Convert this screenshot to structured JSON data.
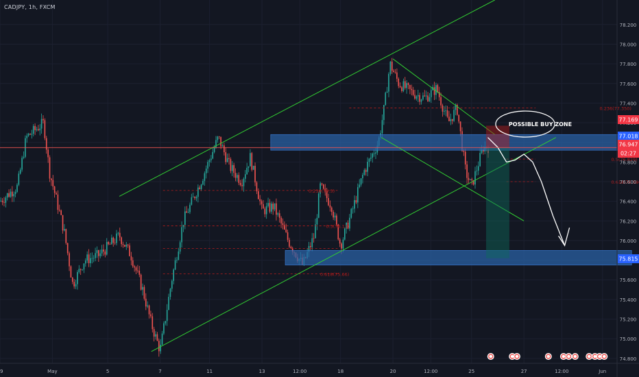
{
  "header": {
    "symbol": "CADJPY, 1h, FXCM"
  },
  "colors": {
    "bg": "#131722",
    "up": "#26a69a",
    "down": "#ef5350",
    "channel": "#32cd32",
    "zone": "#2962a8",
    "axis_text": "#b2b5be",
    "price_line": "#ef5350",
    "fib": "#b71c1c",
    "tag_red": "#f23645",
    "tag_blue": "#2962ff"
  },
  "annotation": {
    "buy_zone_label": "POSSIBLE BUY ZONE"
  },
  "price_tags": {
    "current_price": "76.947",
    "countdown": "02:27",
    "level_high": "77.169",
    "level_mid": "77.018",
    "level_low": "75.815"
  },
  "fib_labels": [
    {
      "text": "0.236(77.350)",
      "x": 10.3,
      "y": 77.35
    },
    {
      "text": "0.5(76.829)",
      "x": 10.5,
      "y": 76.83
    },
    {
      "text": "0.618(76.596)",
      "x": 10.5,
      "y": 76.6
    },
    {
      "text": "0.236(76.5)",
      "x": 5.3,
      "y": 76.51
    },
    {
      "text": "0.5(76.11)",
      "x": 5.6,
      "y": 76.15
    },
    {
      "text": "0.618(75.66)",
      "x": 5.5,
      "y": 75.66
    }
  ],
  "chart_data": {
    "type": "candlestick",
    "instrument": "CADJPY",
    "timeframe": "1h",
    "source": "FXCM",
    "ylim": [
      74.75,
      78.45
    ],
    "y_ticks": [
      "78.200",
      "78.000",
      "77.800",
      "77.600",
      "77.400",
      "77.200",
      "77.000",
      "76.800",
      "76.600",
      "76.400",
      "76.200",
      "76.000",
      "75.800",
      "75.600",
      "75.400",
      "75.200",
      "75.000",
      "74.800"
    ],
    "x_ticks": [
      {
        "label": "29",
        "x": 0.0
      },
      {
        "label": "May",
        "x": 0.9
      },
      {
        "label": "5",
        "x": 1.85
      },
      {
        "label": "7",
        "x": 2.75
      },
      {
        "label": "11",
        "x": 3.6
      },
      {
        "label": "13",
        "x": 4.5
      },
      {
        "label": "12:00",
        "x": 5.15
      },
      {
        "label": "18",
        "x": 5.85
      },
      {
        "label": "20",
        "x": 6.75
      },
      {
        "label": "12:00",
        "x": 7.4
      },
      {
        "label": "25",
        "x": 8.1
      },
      {
        "label": "27",
        "x": 9.0
      },
      {
        "label": "12:00",
        "x": 9.65
      },
      {
        "label": "Jun",
        "x": 10.35
      }
    ],
    "xlim": [
      0.0,
      10.6
    ],
    "path_points": [
      [
        0.0,
        76.4
      ],
      [
        0.3,
        76.55
      ],
      [
        0.45,
        77.05
      ],
      [
        0.75,
        77.2
      ],
      [
        0.85,
        76.7
      ],
      [
        1.1,
        76.1
      ],
      [
        1.25,
        75.55
      ],
      [
        1.45,
        75.8
      ],
      [
        1.7,
        75.85
      ],
      [
        2.05,
        76.05
      ],
      [
        2.25,
        75.85
      ],
      [
        2.45,
        75.5
      ],
      [
        2.6,
        75.15
      ],
      [
        2.75,
        74.88
      ],
      [
        2.95,
        75.6
      ],
      [
        3.15,
        76.2
      ],
      [
        3.45,
        76.6
      ],
      [
        3.75,
        77.05
      ],
      [
        3.95,
        76.75
      ],
      [
        4.15,
        76.6
      ],
      [
        4.3,
        76.85
      ],
      [
        4.5,
        76.3
      ],
      [
        4.7,
        76.35
      ],
      [
        4.95,
        76.0
      ],
      [
        5.2,
        75.75
      ],
      [
        5.4,
        76.05
      ],
      [
        5.5,
        76.55
      ],
      [
        5.7,
        76.35
      ],
      [
        5.85,
        75.95
      ],
      [
        6.05,
        76.3
      ],
      [
        6.25,
        76.7
      ],
      [
        6.5,
        77.0
      ],
      [
        6.6,
        77.35
      ],
      [
        6.7,
        77.8
      ],
      [
        6.85,
        77.6
      ],
      [
        7.1,
        77.5
      ],
      [
        7.3,
        77.45
      ],
      [
        7.5,
        77.55
      ],
      [
        7.7,
        77.2
      ],
      [
        7.85,
        77.35
      ],
      [
        8.0,
        76.7
      ],
      [
        8.1,
        76.55
      ],
      [
        8.3,
        76.95
      ],
      [
        8.4,
        76.95
      ]
    ],
    "support_zones": [
      {
        "x0": 4.65,
        "x1": 10.65,
        "y0": 76.92,
        "y1": 77.08
      },
      {
        "x0": 4.9,
        "x1": 10.85,
        "y0": 75.75,
        "y1": 75.9
      }
    ],
    "horizontal_line": {
      "y": 76.947
    },
    "fib_levels": [
      {
        "y": 77.35,
        "x0": 6.0,
        "x1": 9.2
      },
      {
        "y": 76.83,
        "x0": 8.7,
        "x1": 9.2
      },
      {
        "y": 76.6,
        "x0": 8.7,
        "x1": 9.2
      },
      {
        "y": 76.51,
        "x0": 2.8,
        "x1": 5.8
      },
      {
        "y": 76.15,
        "x0": 2.8,
        "x1": 5.8
      },
      {
        "y": 75.92,
        "x0": 2.8,
        "x1": 5.8
      },
      {
        "y": 75.66,
        "x0": 2.8,
        "x1": 5.8
      }
    ],
    "channel_lines": [
      {
        "x0": 2.6,
        "y0": 74.87,
        "x1": 9.55,
        "y1": 77.05
      },
      {
        "x0": 2.05,
        "y0": 76.45,
        "x1": 8.5,
        "y1": 78.45
      },
      {
        "x0": 6.75,
        "y0": 77.85,
        "x1": 8.5,
        "y1": 77.08
      },
      {
        "x0": 6.55,
        "y0": 77.05,
        "x1": 9.0,
        "y1": 76.2
      }
    ],
    "position_box": {
      "x0": 8.35,
      "x1": 8.75,
      "stop": {
        "y0": 76.947,
        "y1": 77.17
      },
      "target": {
        "y0": 75.82,
        "y1": 76.947
      }
    },
    "projection_path": [
      [
        8.38,
        77.05
      ],
      [
        8.55,
        76.95
      ],
      [
        8.7,
        76.8
      ],
      [
        8.85,
        76.82
      ],
      [
        9.0,
        76.88
      ],
      [
        9.15,
        76.8
      ],
      [
        9.3,
        76.6
      ],
      [
        9.5,
        76.25
      ],
      [
        9.7,
        75.95
      ]
    ],
    "event_markers": [
      8.43,
      8.8,
      8.88,
      9.42,
      9.68,
      9.77,
      9.88,
      10.12,
      10.22,
      10.3,
      10.38
    ]
  }
}
